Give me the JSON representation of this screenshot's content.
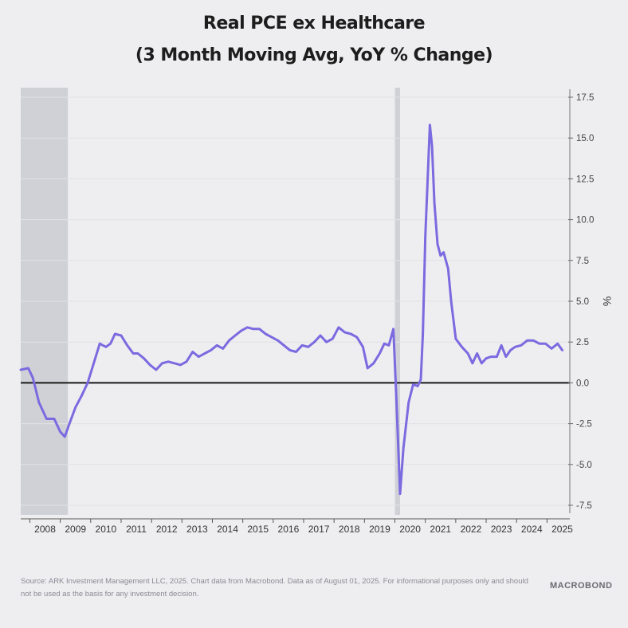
{
  "title": "Real PCE ex Healthcare",
  "subtitle": "(3 Month Moving Avg, YoY % Change)",
  "footer": {
    "source": "Source: ARK Investment Management LLC, 2025. Chart data from Macrobond. Data as of August 01, 2025. For informational purposes only and should not be used as the basis for any investment decision."
  },
  "logo": "MACROBOND",
  "colors": {
    "line": "#7b6ae0",
    "recession_shade": "#c9cbd2",
    "zero_line": "#1a1a1a",
    "grid": "#e2e2e6"
  },
  "chart_data": {
    "type": "line",
    "title": "Real PCE ex Healthcare",
    "subtitle": "(3 Month Moving Avg, YoY % Change)",
    "ylabel": "%",
    "y_axis_side": "right",
    "ylim": [
      -7.5,
      17.5
    ],
    "xlim": [
      2007.7,
      2025.75
    ],
    "yticks": [
      "17.5",
      "15.0",
      "12.5",
      "10.0",
      "7.5",
      "5.0",
      "2.5",
      "0.0",
      "-2.5",
      "-5.0",
      "-7.5"
    ],
    "ytick_values": [
      17.5,
      15.0,
      12.5,
      10.0,
      7.5,
      5.0,
      2.5,
      0.0,
      -2.5,
      -5.0,
      -7.5
    ],
    "xticks": [
      "2008",
      "2009",
      "2010",
      "2011",
      "2012",
      "2013",
      "2014",
      "2015",
      "2016",
      "2017",
      "2018",
      "2019",
      "2020",
      "2021",
      "2022",
      "2023",
      "2024",
      "2025"
    ],
    "xtick_values": [
      2008,
      2009,
      2010,
      2011,
      2012,
      2013,
      2014,
      2015,
      2016,
      2017,
      2018,
      2019,
      2020,
      2021,
      2022,
      2023,
      2024,
      2025
    ],
    "grid": true,
    "recessions": [
      [
        2007.7,
        2009.25
      ],
      [
        2020.0,
        2020.17
      ]
    ],
    "zero_line": true,
    "series": [
      {
        "name": "Real PCE ex Healthcare",
        "x": [
          2007.7,
          2007.95,
          2008.1,
          2008.3,
          2008.55,
          2008.8,
          2009.0,
          2009.15,
          2009.3,
          2009.5,
          2009.7,
          2009.9,
          2010.1,
          2010.3,
          2010.5,
          2010.65,
          2010.8,
          2011.0,
          2011.2,
          2011.4,
          2011.55,
          2011.75,
          2011.95,
          2012.15,
          2012.35,
          2012.55,
          2012.75,
          2012.95,
          2013.15,
          2013.35,
          2013.55,
          2013.75,
          2013.95,
          2014.15,
          2014.35,
          2014.55,
          2014.75,
          2014.95,
          2015.15,
          2015.35,
          2015.55,
          2015.75,
          2015.95,
          2016.15,
          2016.35,
          2016.55,
          2016.75,
          2016.95,
          2017.15,
          2017.35,
          2017.55,
          2017.75,
          2017.95,
          2018.15,
          2018.35,
          2018.55,
          2018.75,
          2018.95,
          2019.1,
          2019.3,
          2019.5,
          2019.65,
          2019.8,
          2019.95,
          2020.05,
          2020.17,
          2020.28,
          2020.45,
          2020.6,
          2020.75,
          2020.85,
          2020.92,
          2021.0,
          2021.15,
          2021.22,
          2021.3,
          2021.4,
          2021.5,
          2021.6,
          2021.75,
          2021.85,
          2022.0,
          2022.2,
          2022.4,
          2022.55,
          2022.7,
          2022.85,
          2023.0,
          2023.15,
          2023.35,
          2023.5,
          2023.65,
          2023.8,
          2023.95,
          2024.15,
          2024.35,
          2024.55,
          2024.75,
          2024.95,
          2025.15,
          2025.35,
          2025.5
        ],
        "values": [
          0.8,
          0.9,
          0.3,
          -1.2,
          -2.2,
          -2.2,
          -3.0,
          -3.3,
          -2.5,
          -1.5,
          -0.8,
          0.0,
          1.2,
          2.4,
          2.2,
          2.4,
          3.0,
          2.9,
          2.3,
          1.8,
          1.8,
          1.5,
          1.1,
          0.8,
          1.2,
          1.3,
          1.2,
          1.1,
          1.3,
          1.9,
          1.6,
          1.8,
          2.0,
          2.3,
          2.1,
          2.6,
          2.9,
          3.2,
          3.4,
          3.3,
          3.3,
          3.0,
          2.8,
          2.6,
          2.3,
          2.0,
          1.9,
          2.3,
          2.2,
          2.5,
          2.9,
          2.5,
          2.7,
          3.4,
          3.1,
          3.0,
          2.8,
          2.2,
          0.9,
          1.2,
          1.8,
          2.4,
          2.3,
          3.3,
          -1.0,
          -6.8,
          -4.0,
          -1.2,
          -0.1,
          -0.2,
          0.2,
          3.0,
          9.0,
          15.8,
          14.5,
          11.0,
          8.5,
          7.8,
          8.0,
          7.0,
          5.0,
          2.7,
          2.2,
          1.8,
          1.2,
          1.8,
          1.2,
          1.5,
          1.6,
          1.6,
          2.3,
          1.6,
          2.0,
          2.2,
          2.3,
          2.6,
          2.6,
          2.4,
          2.4,
          2.1,
          2.4,
          2.0
        ]
      }
    ]
  }
}
